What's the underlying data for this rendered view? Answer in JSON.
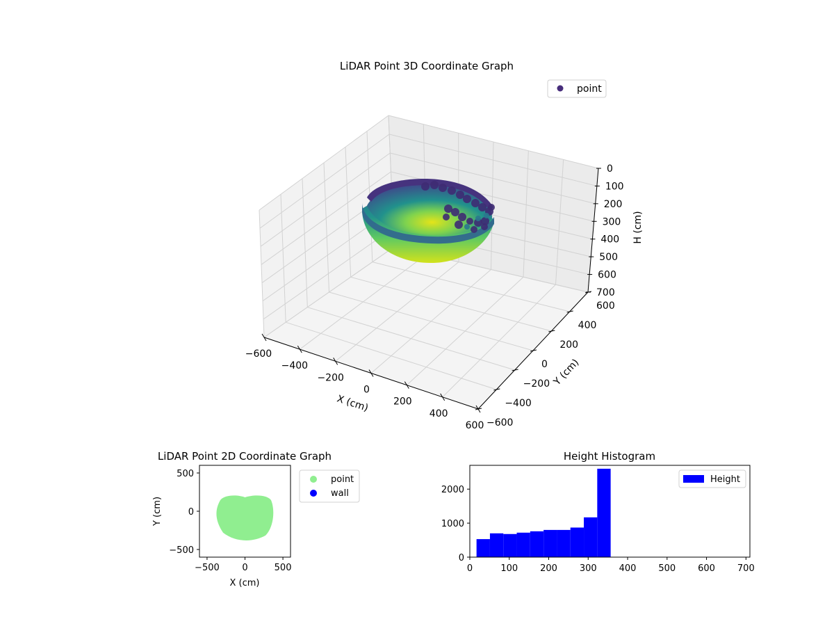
{
  "chart_data": [
    {
      "type": "scatter3d",
      "title": "LiDAR Point 3D Coordinate Graph",
      "xlabel": "X (cm)",
      "ylabel": "Y (cm)",
      "zlabel": "H (cm)",
      "xlim": [
        -600,
        600
      ],
      "ylim": [
        -600,
        600
      ],
      "zlim": [
        700,
        0
      ],
      "x_ticks": [
        "−600",
        "−400",
        "−200",
        "0",
        "200",
        "400",
        "600"
      ],
      "y_ticks": [
        "−600",
        "−400",
        "−200",
        "0",
        "200",
        "400",
        "600"
      ],
      "z_ticks": [
        "0",
        "100",
        "200",
        "300",
        "400",
        "500",
        "600",
        "700"
      ],
      "grid": true,
      "legend": {
        "position": "top-right",
        "entries": [
          {
            "name": "point",
            "color": "#472d7b"
          }
        ]
      },
      "colormap": "viridis",
      "shape": {
        "type": "bowl",
        "rim_radius": 350,
        "rim_height": 0,
        "bottom_height": 350
      }
    },
    {
      "type": "scatter",
      "title": "LiDAR Point 2D Coordinate Graph",
      "xlabel": "X (cm)",
      "ylabel": "Y (cm)",
      "xlim": [
        -600,
        600
      ],
      "ylim": [
        -600,
        600
      ],
      "x_ticks": [
        "−500",
        "0",
        "500"
      ],
      "y_ticks": [
        "−500",
        "0",
        "500"
      ],
      "legend": {
        "position": "outside-right",
        "entries": [
          {
            "name": "point",
            "color": "#90ee90"
          },
          {
            "name": "wall",
            "color": "#0000ff"
          }
        ]
      },
      "region": {
        "x_range": [
          -380,
          380
        ],
        "y_range": [
          -390,
          200
        ]
      }
    },
    {
      "type": "bar",
      "title": "Height Histogram",
      "xlim": [
        0,
        710
      ],
      "ylim": [
        0,
        2700
      ],
      "x_ticks": [
        "0",
        "100",
        "200",
        "300",
        "400",
        "500",
        "600",
        "700"
      ],
      "y_ticks": [
        "0",
        "1000",
        "2000"
      ],
      "color": "#0000ff",
      "legend": {
        "position": "top-right",
        "entries": [
          {
            "name": "Height",
            "color": "#0000ff"
          }
        ]
      },
      "bins": [
        {
          "start": 17,
          "end": 51,
          "value": 530
        },
        {
          "start": 51,
          "end": 85,
          "value": 700
        },
        {
          "start": 85,
          "end": 119,
          "value": 680
        },
        {
          "start": 119,
          "end": 153,
          "value": 720
        },
        {
          "start": 153,
          "end": 187,
          "value": 760
        },
        {
          "start": 187,
          "end": 221,
          "value": 800
        },
        {
          "start": 221,
          "end": 255,
          "value": 800
        },
        {
          "start": 255,
          "end": 289,
          "value": 870
        },
        {
          "start": 289,
          "end": 323,
          "value": 1170
        },
        {
          "start": 323,
          "end": 357,
          "value": 2600
        }
      ]
    }
  ]
}
